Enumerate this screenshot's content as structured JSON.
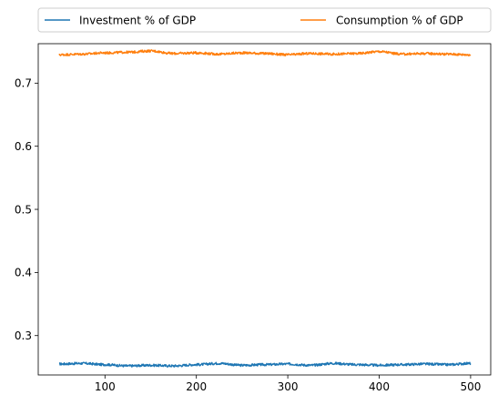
{
  "chart_data": {
    "type": "line",
    "title": "",
    "xlabel": "",
    "ylabel": "",
    "xlim": [
      27,
      522
    ],
    "ylim": [
      0.2376,
      0.7625
    ],
    "x_ticks": [
      100,
      200,
      300,
      400,
      500
    ],
    "x_tick_labels": [
      "100",
      "200",
      "300",
      "400",
      "500"
    ],
    "y_ticks": [
      0.3,
      0.4,
      0.5,
      0.6,
      0.7
    ],
    "y_tick_labels": [
      "0.3",
      "0.4",
      "0.5",
      "0.6",
      "0.7"
    ],
    "grid": false,
    "legend_position": "top, above plot, two columns",
    "series": [
      {
        "name": "Investment % of GDP",
        "color": "#1f77b4",
        "x_start": 50,
        "x_end": 500,
        "x_step": 25,
        "values": [
          0.255,
          0.256,
          0.254,
          0.252,
          0.253,
          0.252,
          0.254,
          0.256,
          0.253,
          0.254,
          0.255,
          0.253,
          0.256,
          0.254,
          0.253,
          0.254,
          0.255,
          0.254,
          0.256
        ]
      },
      {
        "name": "Consumption % of GDP",
        "color": "#ff7f0e",
        "x_start": 50,
        "x_end": 500,
        "x_step": 25,
        "values": [
          0.745,
          0.746,
          0.748,
          0.749,
          0.751,
          0.747,
          0.748,
          0.746,
          0.748,
          0.747,
          0.745,
          0.747,
          0.746,
          0.747,
          0.75,
          0.746,
          0.747,
          0.746,
          0.745
        ]
      }
    ]
  }
}
